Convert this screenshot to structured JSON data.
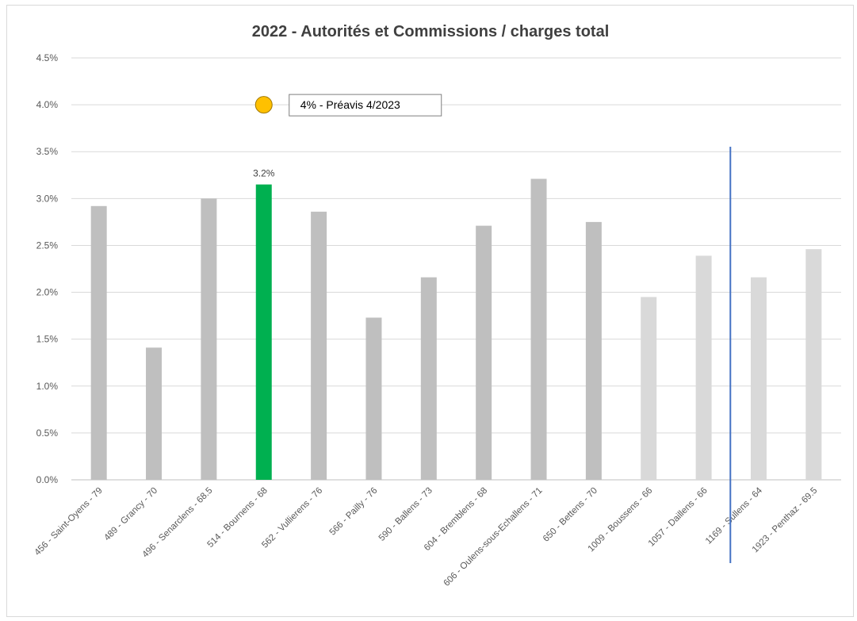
{
  "chart_data": {
    "type": "bar",
    "title": "2022 - Autorités et Commissions / charges total",
    "xlabel": "",
    "ylabel": "",
    "ylim": [
      0,
      4.5
    ],
    "y_ticks": [
      "0.0%",
      "0.5%",
      "1.0%",
      "1.5%",
      "2.0%",
      "2.5%",
      "3.0%",
      "3.5%",
      "4.0%",
      "4.5%"
    ],
    "grid": true,
    "legend": "none",
    "categories": [
      "456 - Saint-Oyens - 79",
      "489 - Grancy - 70",
      "496 - Senarclens - 68.5",
      "514 - Bournens - 68",
      "562 - Vullierens - 76",
      "566 - Pailly - 76",
      "590 - Ballens - 73",
      "604 - Bremblens - 68",
      "606 - Oulens-sous-Echallens - 71",
      "650 - Bettens - 70",
      "1009 - Boussens - 66",
      "1057 - Daillens - 66",
      "1169 - Sullens - 64",
      "1923 - Penthaz - 69.5"
    ],
    "values": [
      2.92,
      1.41,
      3.0,
      3.15,
      2.86,
      1.73,
      2.16,
      2.71,
      3.21,
      2.75,
      1.95,
      2.39,
      2.16,
      2.46
    ],
    "bar_colors": [
      "#bfbfbf",
      "#bfbfbf",
      "#bfbfbf",
      "#00b050",
      "#bfbfbf",
      "#bfbfbf",
      "#bfbfbf",
      "#bfbfbf",
      "#bfbfbf",
      "#bfbfbf",
      "#d9d9d9",
      "#d9d9d9",
      "#d9d9d9",
      "#d9d9d9"
    ],
    "data_labels": [
      {
        "index": 3,
        "text": "3.2%"
      }
    ],
    "highlight_color": "#00b050",
    "annotation": {
      "text": "4% - Préavis 4/2023",
      "value": 4.0,
      "marker_color": "#ffc000"
    },
    "vertical_line": {
      "between": [
        "1057 - Daillens - 66",
        "1169 - Sullens - 64"
      ],
      "color": "#4472c4"
    }
  }
}
